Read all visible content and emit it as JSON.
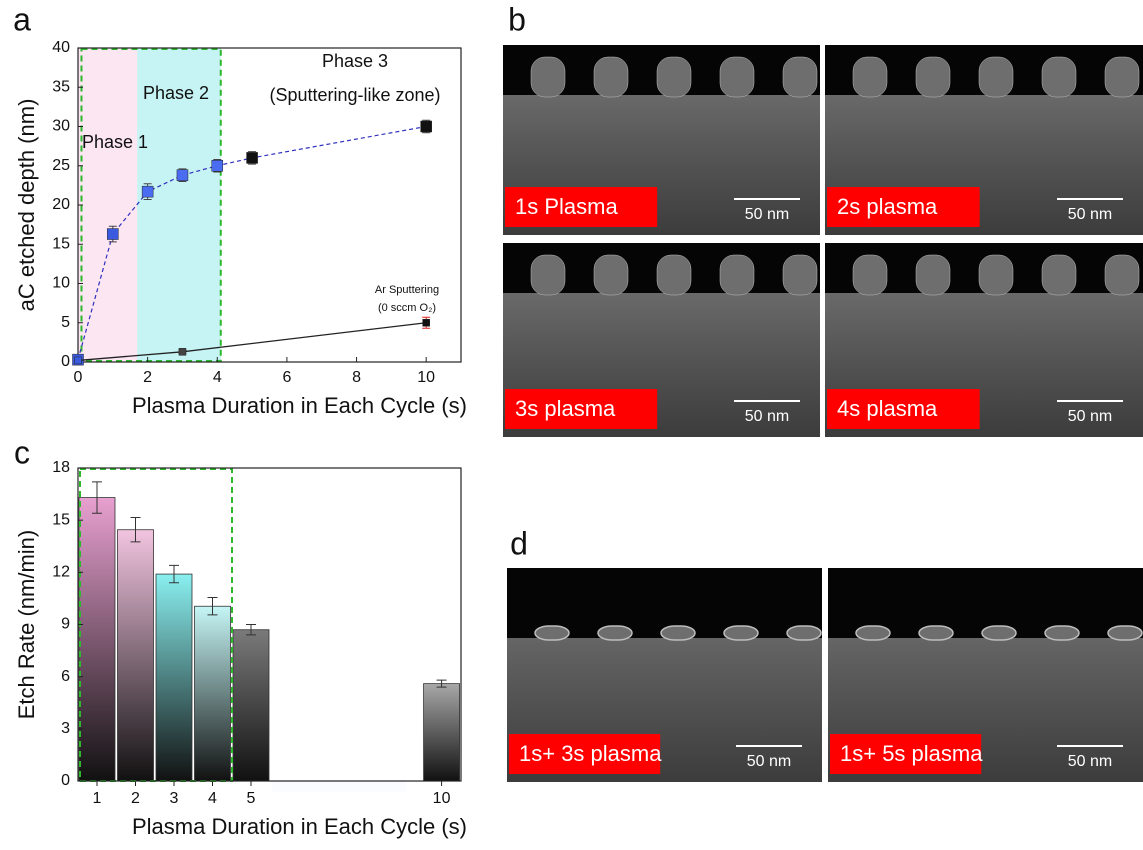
{
  "chart_data": [
    {
      "type": "line",
      "panel": "a",
      "x_label": "Plasma Duration in Each Cycle (s)",
      "y_label": "aC etched depth (nm)",
      "xlim": [
        0,
        11
      ],
      "xticks": [
        0,
        2,
        4,
        6,
        8,
        10
      ],
      "ylim": [
        0,
        40
      ],
      "yticks": [
        0,
        5,
        10,
        15,
        20,
        25,
        30,
        35,
        40
      ],
      "annotations": [
        "Phase 1",
        "Phase 2",
        "Phase 3",
        "(Sputtering-like zone)",
        "(0 sccm O₂)"
      ],
      "series": [
        {
          "color": "#3030c0",
          "point_colors": [
            "#3a5be0",
            "#3a5be0",
            "#4a6cf0",
            "#4a6cf0",
            "#4a6cf0",
            "#111111",
            "#111111"
          ],
          "x": [
            0,
            1,
            2,
            3,
            4,
            5,
            10
          ],
          "values": [
            0.3,
            16.3,
            21.7,
            23.8,
            25,
            26,
            30
          ],
          "errors": [
            0.3,
            1,
            1,
            0.8,
            0.8,
            0.8,
            0.8
          ]
        },
        {
          "name": "Ar Sputtering",
          "color": "#222222",
          "point_colors": [
            "#3a5be0",
            "#444444",
            "#111111"
          ],
          "x": [
            0,
            3,
            10
          ],
          "values": [
            0.2,
            1.3,
            5
          ],
          "errors": [
            0,
            0.2,
            0.7
          ]
        }
      ]
    },
    {
      "type": "bar",
      "panel": "c",
      "x_label": "Plasma Duration in Each Cycle (s)",
      "y_label": "Etch Rate (nm/min)",
      "categories": [
        "1",
        "2",
        "3",
        "4",
        "5",
        "10"
      ],
      "values": [
        16.3,
        14.45,
        11.9,
        10.05,
        8.7,
        5.6
      ],
      "errors": [
        0.9,
        0.7,
        0.5,
        0.5,
        0.3,
        0.2
      ],
      "colors": [
        "#e8a0d0",
        "#f2c4e0",
        "#8af0f0",
        "#c6f6f6",
        "#7a7a7a",
        "#a8a8a8"
      ],
      "ylim": [
        0,
        18
      ],
      "yticks": [
        0,
        3,
        6,
        9,
        12,
        15,
        18
      ]
    }
  ],
  "image_panels": [
    {
      "panel": "b",
      "images": [
        {
          "caption": "1s Plasma",
          "scale_bar": "50 nm"
        },
        {
          "caption": "2s plasma",
          "scale_bar": "50 nm"
        },
        {
          "caption": "3s plasma",
          "scale_bar": "50 nm"
        },
        {
          "caption": "4s plasma",
          "scale_bar": "50 nm"
        }
      ]
    },
    {
      "panel": "d",
      "images": [
        {
          "caption": "1s+ 3s plasma",
          "scale_bar": "50 nm"
        },
        {
          "caption": "1s+ 5s plasma",
          "scale_bar": "50 nm"
        }
      ]
    }
  ]
}
